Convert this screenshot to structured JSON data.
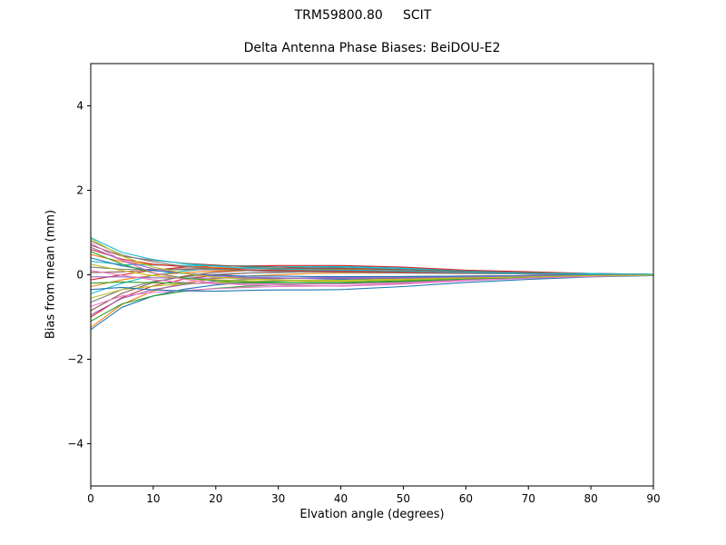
{
  "chart_data": {
    "type": "line",
    "suptitle": "TRM59800.80     SCIT",
    "title": "Delta Antenna Phase Biases: BeiDOU-E2",
    "xlabel": "Elvation angle (degrees)",
    "ylabel": "Bias from mean (mm)",
    "xlim": [
      0,
      90
    ],
    "ylim": [
      -5,
      5
    ],
    "x_ticks": [
      0,
      10,
      20,
      30,
      40,
      50,
      60,
      70,
      80,
      90
    ],
    "y_ticks": [
      -4,
      -2,
      0,
      2,
      4
    ],
    "y_tick_labels": [
      "−4",
      "−2",
      "0",
      "2",
      "4"
    ],
    "grid": false,
    "legend": "none",
    "x": [
      0,
      5,
      10,
      15,
      20,
      25,
      30,
      35,
      40,
      50,
      60,
      70,
      80,
      90
    ],
    "palette": [
      "#1f77b4",
      "#ff7f0e",
      "#2ca02c",
      "#d62728",
      "#9467bd",
      "#8c564b",
      "#e377c2",
      "#7f7f7f",
      "#bcbd22",
      "#17becf"
    ],
    "series": [
      {
        "values": [
          -1.3,
          -0.77,
          -0.5,
          -0.34,
          -0.24,
          -0.18,
          -0.15,
          -0.13,
          -0.11,
          -0.08,
          -0.05,
          -0.03,
          -0.02,
          -0.01
        ]
      },
      {
        "values": [
          -1.25,
          -0.7,
          -0.38,
          -0.19,
          -0.09,
          -0.03,
          0.0,
          0.03,
          0.04,
          0.04,
          0.03,
          0.02,
          0.01,
          0.0
        ]
      },
      {
        "values": [
          -1.1,
          -0.69,
          -0.5,
          -0.39,
          -0.32,
          -0.27,
          -0.24,
          -0.22,
          -0.21,
          -0.16,
          -0.1,
          -0.06,
          -0.03,
          -0.01
        ]
      },
      {
        "values": [
          -1.0,
          -0.54,
          -0.26,
          -0.1,
          -0.01,
          0.04,
          0.06,
          0.08,
          0.09,
          0.08,
          0.05,
          0.03,
          0.02,
          0.01
        ]
      },
      {
        "values": [
          -0.95,
          -0.56,
          -0.35,
          -0.23,
          -0.15,
          -0.11,
          -0.09,
          -0.07,
          -0.06,
          -0.04,
          -0.03,
          -0.02,
          -0.01,
          0.0
        ]
      },
      {
        "values": [
          -0.85,
          -0.44,
          -0.18,
          -0.03,
          0.06,
          0.1,
          0.12,
          0.13,
          0.14,
          0.12,
          0.08,
          0.05,
          0.02,
          0.01
        ]
      },
      {
        "values": [
          -0.75,
          -0.5,
          -0.42,
          -0.37,
          -0.33,
          -0.3,
          -0.28,
          -0.27,
          -0.26,
          -0.2,
          -0.13,
          -0.08,
          -0.04,
          -0.01
        ]
      },
      {
        "values": [
          -0.65,
          -0.35,
          -0.16,
          -0.05,
          0.01,
          0.04,
          0.05,
          0.07,
          0.07,
          0.06,
          0.04,
          0.02,
          0.01,
          0.0
        ]
      },
      {
        "values": [
          -0.55,
          -0.35,
          -0.27,
          -0.21,
          -0.18,
          -0.15,
          -0.14,
          -0.13,
          -0.13,
          -0.1,
          -0.06,
          -0.04,
          -0.02,
          -0.01
        ]
      },
      {
        "values": [
          -0.45,
          -0.2,
          -0.01,
          0.09,
          0.15,
          0.17,
          0.18,
          0.19,
          0.2,
          0.16,
          0.1,
          0.06,
          0.03,
          0.01
        ]
      },
      {
        "values": [
          -0.35,
          -0.3,
          -0.36,
          -0.38,
          -0.39,
          -0.37,
          -0.36,
          -0.36,
          -0.35,
          -0.28,
          -0.18,
          -0.11,
          -0.05,
          -0.02
        ]
      },
      {
        "values": [
          -0.28,
          -0.12,
          -0.01,
          0.05,
          0.09,
          0.1,
          0.11,
          0.11,
          0.12,
          0.1,
          0.06,
          0.04,
          0.02,
          0.01
        ]
      },
      {
        "values": [
          -0.2,
          -0.17,
          -0.19,
          -0.2,
          -0.2,
          -0.19,
          -0.19,
          -0.18,
          -0.18,
          -0.14,
          -0.09,
          -0.05,
          -0.03,
          -0.01
        ]
      },
      {
        "values": [
          -0.12,
          0.0,
          0.11,
          0.18,
          0.21,
          0.21,
          0.22,
          0.22,
          0.22,
          0.18,
          0.11,
          0.07,
          0.03,
          0.01
        ]
      },
      {
        "values": [
          -0.05,
          -0.05,
          -0.07,
          -0.08,
          -0.08,
          -0.08,
          -0.08,
          -0.08,
          -0.08,
          -0.06,
          -0.04,
          -0.02,
          -0.01,
          0.0
        ]
      },
      {
        "values": [
          0.05,
          0.07,
          0.12,
          0.14,
          0.15,
          0.15,
          0.15,
          0.15,
          0.15,
          0.12,
          0.08,
          0.05,
          0.02,
          0.01
        ]
      },
      {
        "values": [
          0.1,
          -0.01,
          -0.12,
          -0.18,
          -0.21,
          -0.21,
          -0.22,
          -0.22,
          -0.22,
          -0.18,
          -0.11,
          -0.07,
          -0.03,
          -0.01
        ]
      },
      {
        "values": [
          0.18,
          0.13,
          0.13,
          0.12,
          0.12,
          0.11,
          0.11,
          0.1,
          0.1,
          0.08,
          0.05,
          0.03,
          0.02,
          0.01
        ]
      },
      {
        "values": [
          0.25,
          0.1,
          -0.02,
          -0.09,
          -0.12,
          -0.14,
          -0.14,
          -0.15,
          -0.15,
          -0.12,
          -0.08,
          -0.05,
          -0.02,
          -0.01
        ]
      },
      {
        "values": [
          0.32,
          0.24,
          0.23,
          0.22,
          0.22,
          0.2,
          0.19,
          0.19,
          0.18,
          0.14,
          0.09,
          0.05,
          0.03,
          0.01
        ]
      },
      {
        "values": [
          0.4,
          0.21,
          0.1,
          0.03,
          -0.01,
          -0.03,
          -0.03,
          -0.04,
          -0.04,
          -0.04,
          -0.03,
          -0.02,
          -0.01,
          0.0
        ]
      },
      {
        "values": [
          0.48,
          0.31,
          0.24,
          0.2,
          0.17,
          0.15,
          0.14,
          0.13,
          0.12,
          0.1,
          0.06,
          0.04,
          0.02,
          0.01
        ]
      },
      {
        "values": [
          0.55,
          0.25,
          0.04,
          -0.08,
          -0.14,
          -0.17,
          -0.18,
          -0.19,
          -0.19,
          -0.16,
          -0.1,
          -0.06,
          -0.03,
          -0.01
        ]
      },
      {
        "values": [
          0.6,
          0.37,
          0.25,
          0.19,
          0.15,
          0.12,
          0.1,
          0.09,
          0.09,
          0.06,
          0.04,
          0.02,
          0.01,
          0.0
        ]
      },
      {
        "values": [
          0.65,
          0.34,
          0.14,
          0.03,
          -0.03,
          -0.06,
          -0.07,
          -0.09,
          -0.09,
          -0.08,
          -0.05,
          -0.03,
          -0.02,
          -0.01
        ]
      },
      {
        "values": [
          0.7,
          0.44,
          0.34,
          0.27,
          0.23,
          0.19,
          0.18,
          0.16,
          0.16,
          0.12,
          0.08,
          0.05,
          0.02,
          0.01
        ]
      },
      {
        "values": [
          0.75,
          0.34,
          0.05,
          -0.11,
          -0.2,
          -0.24,
          -0.25,
          -0.26,
          -0.27,
          -0.22,
          -0.14,
          -0.08,
          -0.04,
          -0.01
        ]
      },
      {
        "values": [
          0.8,
          0.47,
          0.3,
          0.2,
          0.14,
          0.1,
          0.08,
          0.07,
          0.06,
          0.04,
          0.03,
          0.02,
          0.01,
          0.0
        ]
      },
      {
        "values": [
          0.85,
          0.44,
          0.18,
          0.03,
          -0.06,
          -0.1,
          -0.12,
          -0.13,
          -0.14,
          -0.12,
          -0.08,
          -0.05,
          -0.02,
          -0.01
        ]
      },
      {
        "values": [
          0.88,
          0.53,
          0.36,
          0.26,
          0.2,
          0.15,
          0.14,
          0.12,
          0.11,
          0.09,
          0.06,
          0.03,
          0.02,
          0.01
        ]
      }
    ]
  }
}
